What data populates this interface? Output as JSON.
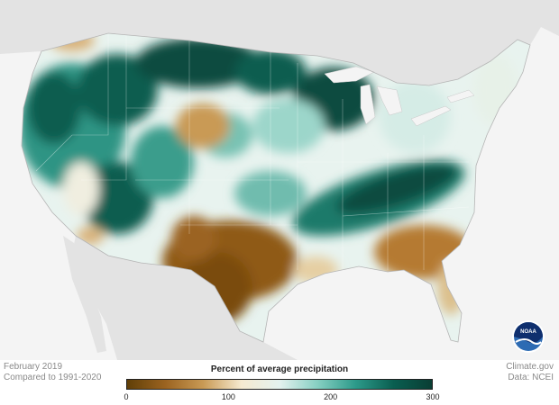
{
  "map": {
    "region": "contiguous United States",
    "variable": "precipitation percent of average",
    "pattern_notes": [
      "wetter than average across the West, northern Plains and upper Midwest",
      "wet band from the southern Plains through the Tennessee and Ohio Valleys",
      "drier than average across Texas, the Southeast coast, and a patch in the central Rockies/Plains"
    ]
  },
  "caption": {
    "date": "February 2019",
    "baseline": "Compared to 1991-2020"
  },
  "credit": {
    "source": "Climate.gov",
    "data": "Data: NCEI"
  },
  "legend": {
    "title": "Percent of average precipitation",
    "ticks": [
      {
        "label": "0",
        "value": 0
      },
      {
        "label": "100",
        "value": 100
      },
      {
        "label": "200",
        "value": 200
      },
      {
        "label": "300",
        "value": 300
      }
    ],
    "range": [
      0,
      300
    ],
    "colors": [
      "#603f07",
      "#9b6320",
      "#c99a55",
      "#f6ead0",
      "#e4f2ef",
      "#86cfc2",
      "#2c9a8a",
      "#0a5e50",
      "#0a3e34"
    ]
  },
  "logo": {
    "text": "NOAA",
    "colors": [
      "#2d6bb3",
      "#0f2f6e"
    ]
  },
  "colors": {
    "land_other": "#e3e3e3",
    "water": "#f4f4f4",
    "wet_dark": "#0b5a4c",
    "wet_mid": "#3a9d8c",
    "wet_light": "#a9ddd2",
    "near_normal": "#eef4ee",
    "dry_light": "#d9b27a",
    "dry_mid": "#b57a30",
    "dry_dark": "#7a4b0e"
  }
}
